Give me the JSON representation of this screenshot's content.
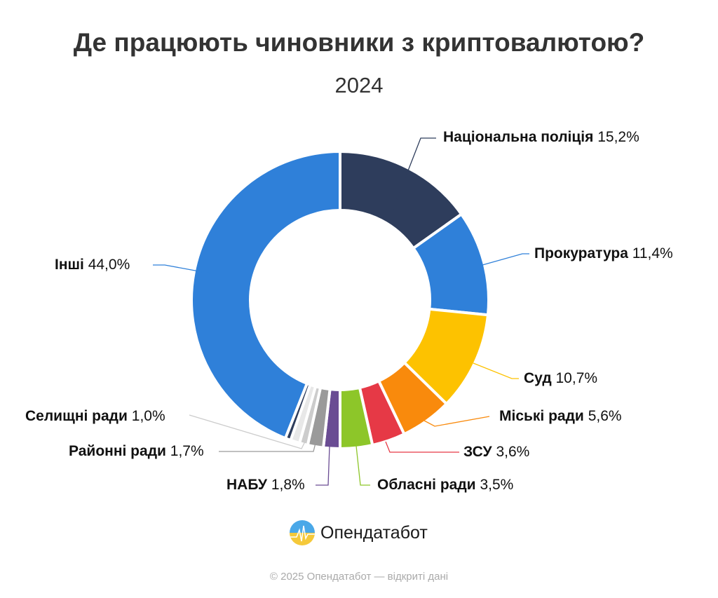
{
  "chart_data": {
    "type": "pie",
    "title": "Де працюють чиновники з криптовалютою?",
    "subtitle": "2024",
    "donut": true,
    "slices": [
      {
        "name": "Національна поліція",
        "value": 15.2,
        "label": "15,2%",
        "color": "#2e3d5c"
      },
      {
        "name": "Прокуратура",
        "value": 11.4,
        "label": "11,4%",
        "color": "#2f80d9"
      },
      {
        "name": "Суд",
        "value": 10.7,
        "label": "10,7%",
        "color": "#fdc200"
      },
      {
        "name": "Міські ради",
        "value": 5.6,
        "label": "5,6%",
        "color": "#f98a0c"
      },
      {
        "name": "ЗСУ",
        "value": 3.6,
        "label": "3,6%",
        "color": "#e63946"
      },
      {
        "name": "Обласні ради",
        "value": 3.5,
        "label": "3,5%",
        "color": "#8dc629"
      },
      {
        "name": "НАБУ",
        "value": 1.8,
        "label": "1,8%",
        "color": "#6a4c93"
      },
      {
        "name": "Районні ради",
        "value": 1.7,
        "label": "1,7%",
        "color": "#9a9a9a"
      },
      {
        "name": "",
        "value": 0.9,
        "label": "",
        "color": "#cccccc"
      },
      {
        "name": "Селищні ради",
        "value": 1.0,
        "label": "1,0%",
        "color": "#e8e8e8"
      },
      {
        "name": "",
        "value": 0.6,
        "label": "",
        "color": "#2e3d5c"
      },
      {
        "name": "Інші",
        "value": 44.0,
        "label": "44,0%",
        "color": "#2f80d9"
      }
    ]
  },
  "brand": "Опендатабот",
  "footer": "© 2025 Опендатабот — відкриті дані"
}
